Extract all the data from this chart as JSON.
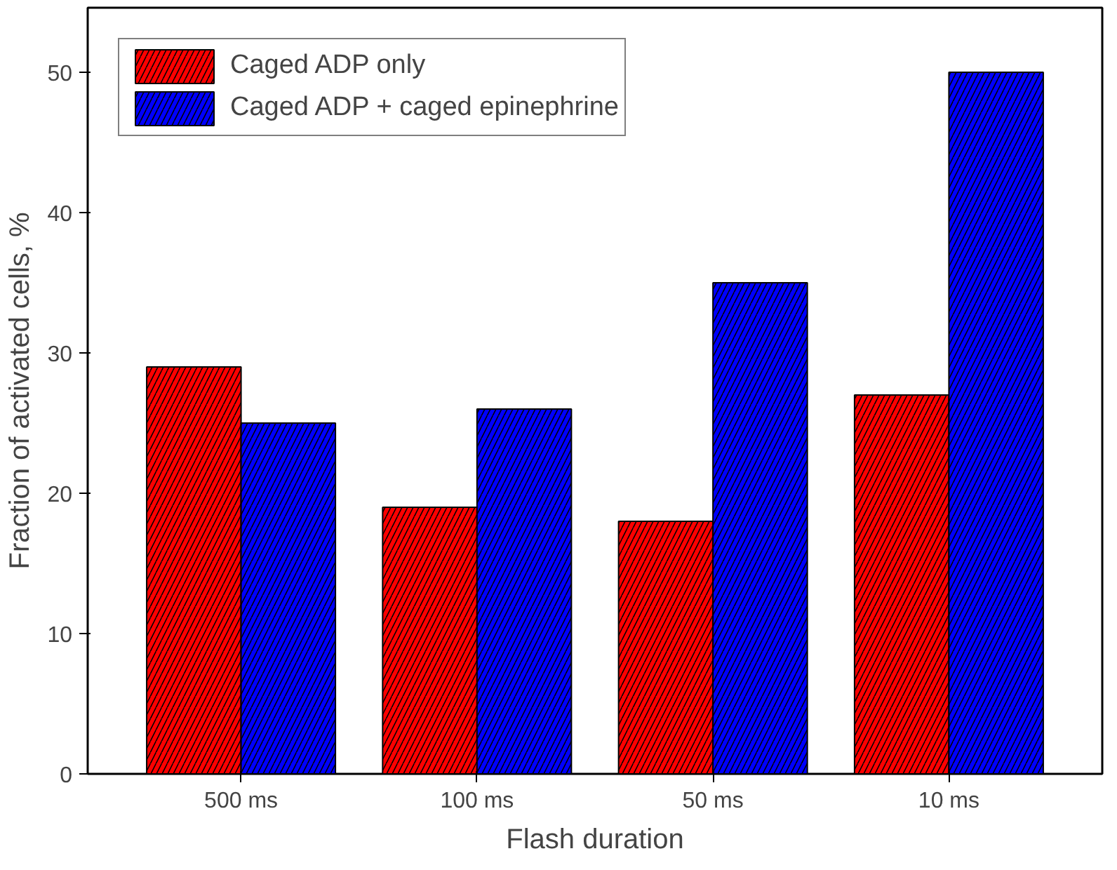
{
  "chart_data": {
    "type": "bar",
    "xlabel": "Flash duration",
    "ylabel": "Fraction of activated cells, %",
    "categories": [
      "500 ms",
      "100 ms",
      "50 ms",
      "10 ms"
    ],
    "series": [
      {
        "name": "Caged ADP only",
        "color": "#ff0000",
        "values": [
          29,
          19,
          18,
          27
        ]
      },
      {
        "name": "Caged ADP + caged epinephrine",
        "color": "#0000ff",
        "values": [
          25,
          26,
          35,
          50
        ]
      }
    ],
    "ylim": [
      0,
      54.6
    ],
    "yticks": [
      0,
      10,
      20,
      30,
      40,
      50
    ],
    "legend": "top left",
    "grid": false
  }
}
